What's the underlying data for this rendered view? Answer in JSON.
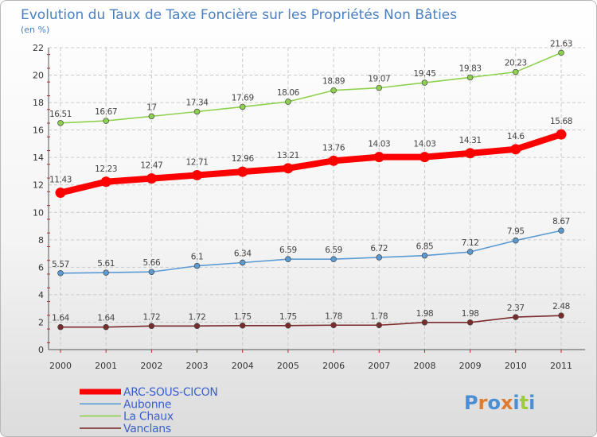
{
  "chart_data": {
    "type": "line",
    "title": "Evolution du Taux de Taxe Foncière sur les Propriétés Non Bâties",
    "ylabel": "(en %)",
    "xlabel": "",
    "ylim": [
      0,
      22
    ],
    "yticks": [
      0,
      2,
      4,
      6,
      8,
      10,
      12,
      14,
      16,
      18,
      20,
      22
    ],
    "grid": true,
    "categories": [
      "2000",
      "2001",
      "2002",
      "2003",
      "2004",
      "2005",
      "2006",
      "2007",
      "2008",
      "2009",
      "2010",
      "2011"
    ],
    "series": [
      {
        "name": "ARC-SOUS-CICON",
        "color": "#ff0000",
        "emphasis": true,
        "values": [
          11.43,
          12.23,
          12.47,
          12.71,
          12.96,
          13.21,
          13.76,
          14.03,
          14.03,
          14.31,
          14.6,
          15.68
        ],
        "labels": [
          "11.43",
          "12.23",
          "12.47",
          "12.71",
          "12.96",
          "13.21",
          "13.76",
          "14.03",
          "14.03",
          "14.31",
          "14.6",
          "15.68"
        ]
      },
      {
        "name": "Aubonne",
        "color": "#5b9bd5",
        "emphasis": false,
        "values": [
          5.57,
          5.61,
          5.66,
          6.1,
          6.34,
          6.59,
          6.59,
          6.72,
          6.85,
          7.12,
          7.95,
          8.67
        ],
        "labels": [
          "5.57",
          "5.61",
          "5.66",
          "6.1",
          "6.34",
          "6.59",
          "6.59",
          "6.72",
          "6.85",
          "7.12",
          "7.95",
          "8.67"
        ]
      },
      {
        "name": "La Chaux",
        "color": "#8fd14f",
        "emphasis": false,
        "values": [
          16.51,
          16.67,
          17,
          17.34,
          17.69,
          18.06,
          18.89,
          19.07,
          19.45,
          19.83,
          20.23,
          21.63
        ],
        "labels": [
          "16.51",
          "16.67",
          "17",
          "17.34",
          "17.69",
          "18.06",
          "18.89",
          "19.07",
          "19.45",
          "19.83",
          "20.23",
          "21.63"
        ]
      },
      {
        "name": "Vanclans",
        "color": "#7b2b2b",
        "emphasis": false,
        "values": [
          1.64,
          1.64,
          1.72,
          1.72,
          1.75,
          1.75,
          1.78,
          1.78,
          1.98,
          1.98,
          2.37,
          2.48
        ],
        "labels": [
          "1.64",
          "1.64",
          "1.72",
          "1.72",
          "1.75",
          "1.75",
          "1.78",
          "1.78",
          "1.98",
          "1.98",
          "2.37",
          "2.48"
        ]
      }
    ],
    "legend_position": "bottom-left"
  },
  "brand": {
    "logo_letters": [
      "P",
      "r",
      "o",
      "x",
      "i",
      "t",
      "i"
    ],
    "logo_colors": [
      "#4a8fd6",
      "#e07a2e",
      "#4a8fd6",
      "#e07a2e",
      "#4a8fd6",
      "#9ccc3c",
      "#4a8fd6"
    ]
  }
}
